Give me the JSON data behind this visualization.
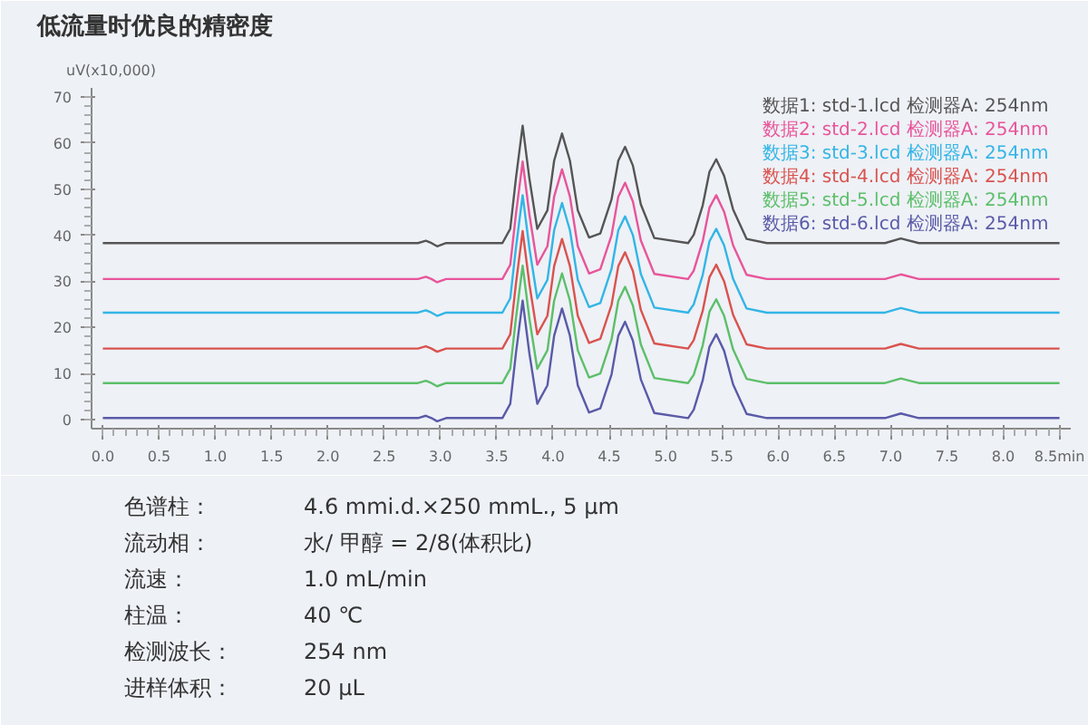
{
  "chart_data": {
    "type": "line",
    "title": "低流量时优良的精密度",
    "ylabel": "uV(x10,000)",
    "x": [
      0,
      2.8,
      2.87,
      2.92,
      2.97,
      3.05,
      3.55,
      3.62,
      3.67,
      3.73,
      3.79,
      3.86,
      3.95,
      4.01,
      4.08,
      4.15,
      4.22,
      4.32,
      4.42,
      4.52,
      4.58,
      4.64,
      4.71,
      4.78,
      4.9,
      5.2,
      5.25,
      5.33,
      5.39,
      5.45,
      5.52,
      5.6,
      5.72,
      5.9,
      6.95,
      7.09,
      7.25,
      8.5
    ],
    "series": [
      {
        "name": "数据1: std-1.lcd 检测器A: 254nm",
        "color": "#555555",
        "values": [
          38.3,
          38.3,
          38.8,
          38.3,
          37.6,
          38.3,
          38.3,
          41.4,
          52.3,
          63.8,
          52.3,
          41.4,
          45.4,
          56.2,
          62.1,
          56.2,
          45.4,
          39.5,
          40.4,
          47.8,
          56.2,
          59.2,
          55.1,
          46.7,
          39.4,
          38.3,
          40.1,
          46.5,
          53.8,
          56.5,
          52.9,
          45.6,
          39.2,
          38.3,
          38.3,
          39.3,
          38.3,
          38.3
        ]
      },
      {
        "name": "数据2: std-2.lcd 检测器A: 254nm",
        "color": "#e8559a",
        "values": [
          30.5,
          30.5,
          31,
          30.5,
          29.8,
          30.5,
          30.5,
          33.6,
          44.5,
          56,
          44.5,
          33.6,
          37.6,
          48.4,
          54.3,
          48.4,
          37.6,
          31.7,
          32.6,
          40,
          48.4,
          51.4,
          47.3,
          38.9,
          31.6,
          30.5,
          32.3,
          38.7,
          46,
          48.7,
          45.1,
          37.8,
          31.4,
          30.5,
          30.5,
          31.5,
          30.5,
          30.5
        ]
      },
      {
        "name": "数据3: std-3.lcd 检测器A: 254nm",
        "color": "#33b5e5",
        "values": [
          23.2,
          23.2,
          23.7,
          23.2,
          22.5,
          23.2,
          23.2,
          26.3,
          37.2,
          48.7,
          37.2,
          26.3,
          30.3,
          41.1,
          47,
          41.1,
          30.3,
          24.4,
          25.3,
          32.7,
          41.1,
          44.1,
          40,
          31.6,
          24.3,
          23.2,
          25,
          31.4,
          38.7,
          41.4,
          37.8,
          30.5,
          24.1,
          23.2,
          23.2,
          24.2,
          23.2,
          23.2
        ]
      },
      {
        "name": "数据4: std-4.lcd 检测器A: 254nm",
        "color": "#d9534f",
        "values": [
          15.4,
          15.4,
          15.9,
          15.4,
          14.7,
          15.4,
          15.4,
          18.5,
          29.4,
          40.9,
          29.4,
          18.5,
          22.5,
          33.3,
          39.2,
          33.3,
          22.5,
          16.6,
          17.5,
          24.9,
          33.3,
          36.3,
          32.2,
          23.8,
          16.5,
          15.4,
          17.2,
          23.6,
          30.9,
          33.6,
          30,
          22.7,
          16.3,
          15.4,
          15.4,
          16.4,
          15.4,
          15.4
        ]
      },
      {
        "name": "数据5: std-5.lcd 检测器A: 254nm",
        "color": "#5cbf6a",
        "values": [
          7.9,
          7.9,
          8.4,
          7.9,
          7.2,
          7.9,
          7.9,
          11,
          21.9,
          33.4,
          21.9,
          11,
          15,
          25.8,
          31.7,
          25.8,
          15,
          9.1,
          10,
          17.4,
          25.8,
          28.8,
          24.7,
          16.3,
          9,
          7.9,
          9.7,
          16.1,
          23.4,
          26.1,
          22.5,
          15.2,
          8.8,
          7.9,
          7.9,
          8.9,
          7.9,
          7.9
        ]
      },
      {
        "name": "数据6: std-6.lcd 检测器A: 254nm",
        "color": "#5a5aa8",
        "values": [
          0.3,
          0.3,
          0.8,
          0.3,
          -0.4,
          0.3,
          0.3,
          3.4,
          14.3,
          25.8,
          14.3,
          3.4,
          7.4,
          18.2,
          24.1,
          18.2,
          7.4,
          1.5,
          2.4,
          9.8,
          18.2,
          21.2,
          17.1,
          8.7,
          1.4,
          0.3,
          2.1,
          8.5,
          15.8,
          18.5,
          14.9,
          7.6,
          1.2,
          0.3,
          0.3,
          1.3,
          0.3,
          0.3
        ]
      }
    ],
    "xlim": [
      -0.1,
      8.6
    ],
    "xticks": [
      {
        "value": 0,
        "label": "0.0"
      },
      0.5,
      {
        "value": 1,
        "label": "1.0"
      },
      1.5,
      {
        "value": 2,
        "label": "2.0"
      },
      2.5,
      {
        "value": 3,
        "label": "3.0"
      },
      3.5,
      {
        "value": 4,
        "label": "4.0"
      },
      4.5,
      {
        "value": 5,
        "label": "5.0"
      },
      5.5,
      {
        "value": 6,
        "label": "6.0"
      },
      6.5,
      {
        "value": 7,
        "label": "7.0"
      },
      7.5,
      {
        "value": 8,
        "label": "8.0"
      },
      {
        "value": 8.5,
        "label": "8.5min"
      }
    ],
    "ylim": [
      -2,
      72
    ],
    "yticks": [
      0,
      10,
      20,
      30,
      40,
      50,
      60,
      70
    ],
    "grid": false,
    "marker": "none",
    "line_style": "solid",
    "annotations": [
      "色谱柱：",
      "4.6 mmi.d.×250 mmL., 5 µm",
      "流动相：",
      "水/ 甲醇 = 2/8(体积比)",
      "流速：",
      "1.0 mL/min",
      "柱温：",
      "40 ℃",
      "检测波长：",
      "254 nm",
      "进样体积：",
      "20 µL"
    ]
  }
}
